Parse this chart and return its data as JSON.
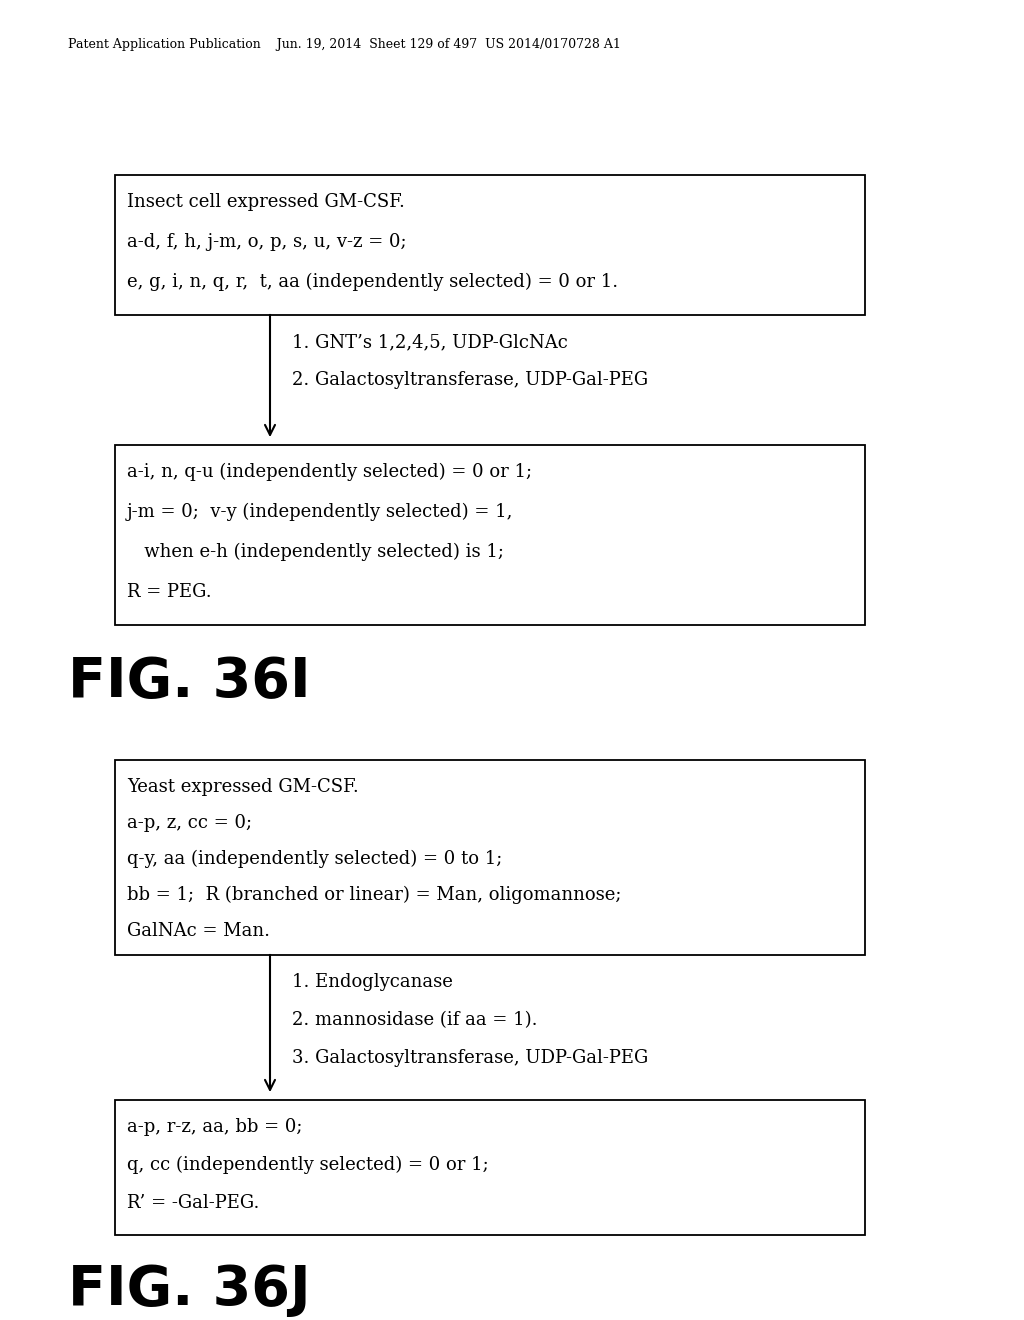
{
  "background_color": "#ffffff",
  "header_text": "Patent Application Publication    Jun. 19, 2014  Sheet 129 of 497  US 2014/0170728 A1",
  "fig361": {
    "label": "FIG. 36I",
    "box1_lines": [
      "Insect cell expressed GM-CSF.",
      "a-d, f, h, j-m, o, p, s, u, v-z = 0;",
      "e, g, i, n, q, r,  t, aa (independently selected) = 0 or 1."
    ],
    "arrow_lines": [
      "1. GNT’s 1,2,4,5, UDP-GlcNAc",
      "2. Galactosyltransferase, UDP-Gal-PEG"
    ],
    "box2_lines": [
      "a-i, n, q-u (independently selected) = 0 or 1;",
      "j-m = 0;  v-y (independently selected) = 1,",
      "   when e-h (independently selected) is 1;",
      "R = PEG."
    ]
  },
  "fig36j": {
    "label": "FIG. 36J",
    "box1_lines": [
      "Yeast expressed GM-CSF.",
      "a-p, z, cc = 0;",
      "q-y, aa (independently selected) = 0 to 1;",
      "bb = 1;  R (branched or linear) = Man, oligomannose;",
      "GalNAc = Man."
    ],
    "arrow_lines": [
      "1. Endoglycanase",
      "2. mannosidase (if aa = 1).",
      "3. Galactosyltransferase, UDP-Gal-PEG"
    ],
    "box2_lines": [
      "a-p, r-z, aa, bb = 0;",
      "q, cc (independently selected) = 0 or 1;",
      "R’ = -Gal-PEG."
    ]
  }
}
